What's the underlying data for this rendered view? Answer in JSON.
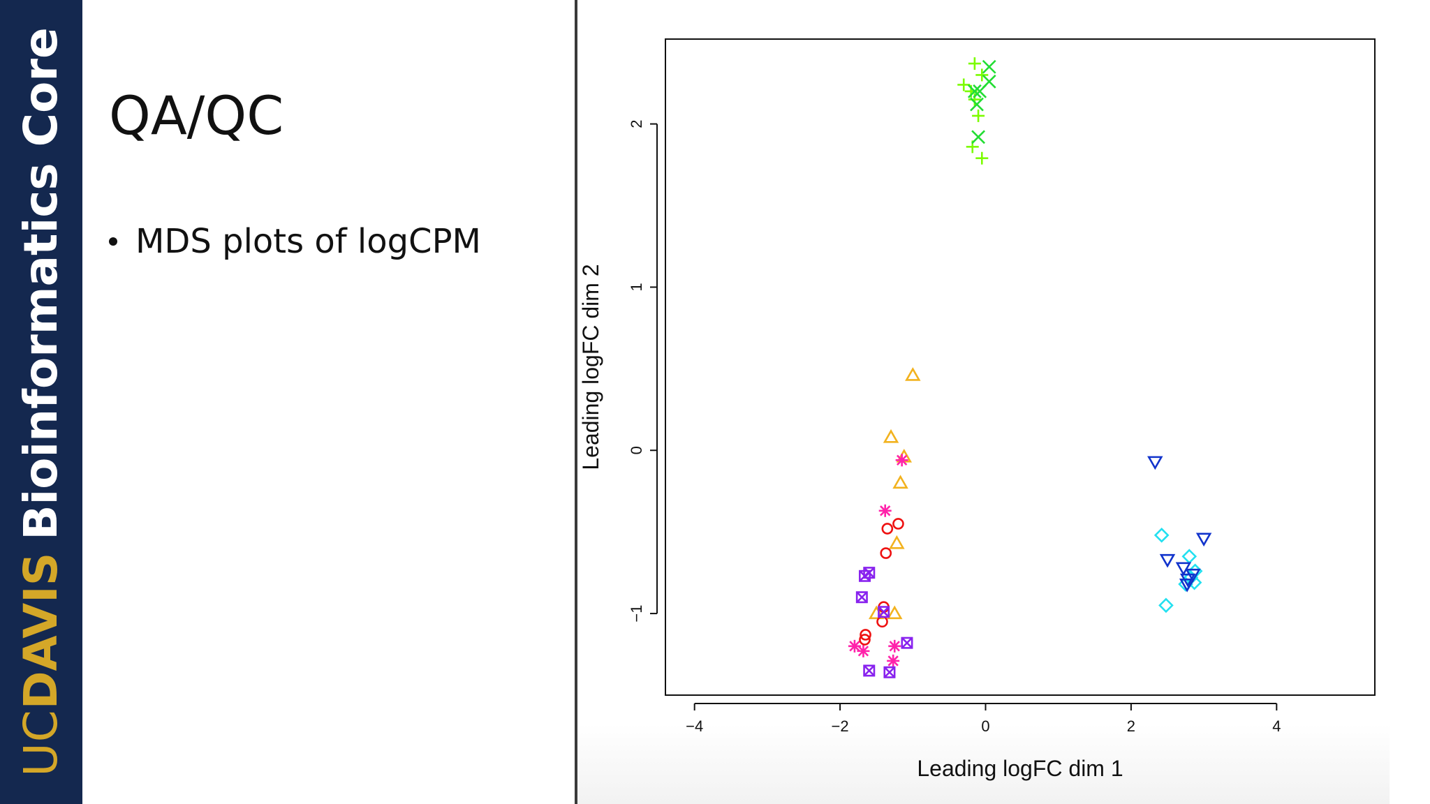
{
  "sidebar": {
    "brand_uc": "UC",
    "brand_davis": "DAVIS",
    "brand_core": "Bioinformatics Core"
  },
  "slide": {
    "title": "QA/QC",
    "bullets": [
      "MDS plots of logCPM"
    ]
  },
  "chart_data": {
    "type": "scatter",
    "title": "",
    "xlabel": "Leading logFC dim 1",
    "ylabel": "Leading logFC dim 2",
    "xlim": [
      -4.4,
      5.35
    ],
    "ylim": [
      -1.5,
      2.52
    ],
    "xticks": [
      -4,
      -2,
      0,
      2,
      4
    ],
    "xtick_labels": [
      "−4",
      "−2",
      "0",
      "2",
      "4"
    ],
    "yticks": [
      -1,
      0,
      1,
      2
    ],
    "ytick_labels": [
      "−1",
      "0",
      "1",
      "2"
    ],
    "grid": false,
    "legend": "none",
    "series": [
      {
        "marker": "plus",
        "color": "#7CFC00",
        "points": [
          [
            -0.15,
            2.37
          ],
          [
            -0.3,
            2.24
          ],
          [
            -0.2,
            2.2
          ],
          [
            -0.05,
            2.3
          ],
          [
            -0.1,
            2.05
          ],
          [
            -0.18,
            1.86
          ],
          [
            -0.05,
            1.79
          ],
          [
            -0.15,
            2.15
          ]
        ]
      },
      {
        "marker": "cross",
        "color": "#22dd33",
        "points": [
          [
            0.05,
            2.35
          ],
          [
            0.05,
            2.26
          ],
          [
            -0.15,
            2.2
          ],
          [
            -0.08,
            2.2
          ],
          [
            -0.12,
            2.12
          ],
          [
            -0.1,
            1.92
          ]
        ]
      },
      {
        "marker": "triangle-up",
        "color": "#f2b21e",
        "points": [
          [
            -1.0,
            0.46
          ],
          [
            -1.3,
            0.08
          ],
          [
            -1.12,
            -0.04
          ],
          [
            -1.17,
            -0.2
          ],
          [
            -1.22,
            -0.57
          ],
          [
            -1.5,
            -1.0
          ],
          [
            -1.25,
            -1.0
          ]
        ]
      },
      {
        "marker": "asterisk",
        "color": "#ff22aa",
        "points": [
          [
            -1.15,
            -0.06
          ],
          [
            -1.38,
            -0.37
          ],
          [
            -1.8,
            -1.2
          ],
          [
            -1.68,
            -1.23
          ],
          [
            -1.25,
            -1.2
          ],
          [
            -1.27,
            -1.29
          ]
        ]
      },
      {
        "marker": "circle",
        "color": "#ee1111",
        "points": [
          [
            -1.2,
            -0.45
          ],
          [
            -1.35,
            -0.48
          ],
          [
            -1.37,
            -0.63
          ],
          [
            -1.4,
            -0.96
          ],
          [
            -1.42,
            -1.05
          ],
          [
            -1.65,
            -1.13
          ],
          [
            -1.66,
            -1.16
          ]
        ]
      },
      {
        "marker": "boxed-x",
        "color": "#8822ee",
        "points": [
          [
            -1.6,
            -0.75
          ],
          [
            -1.66,
            -0.77
          ],
          [
            -1.7,
            -0.9
          ],
          [
            -1.4,
            -0.99
          ],
          [
            -1.08,
            -1.18
          ],
          [
            -1.6,
            -1.35
          ],
          [
            -1.32,
            -1.36
          ]
        ]
      },
      {
        "marker": "diamond",
        "color": "#22e0f0",
        "points": [
          [
            2.42,
            -0.52
          ],
          [
            2.8,
            -0.65
          ],
          [
            2.88,
            -0.74
          ],
          [
            2.82,
            -0.78
          ],
          [
            2.75,
            -0.82
          ],
          [
            2.87,
            -0.81
          ],
          [
            2.48,
            -0.95
          ]
        ]
      },
      {
        "marker": "triangle-down",
        "color": "#1133cc",
        "points": [
          [
            2.33,
            -0.07
          ],
          [
            3.0,
            -0.54
          ],
          [
            2.5,
            -0.67
          ],
          [
            2.72,
            -0.72
          ],
          [
            2.85,
            -0.76
          ],
          [
            2.78,
            -0.79
          ],
          [
            2.77,
            -0.82
          ]
        ]
      }
    ]
  }
}
